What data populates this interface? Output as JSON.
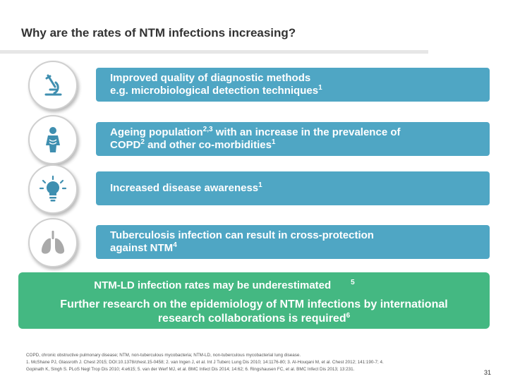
{
  "slide": {
    "title": "Why are the rates of NTM infections increasing?",
    "page_number": "31"
  },
  "reasons": [
    {
      "icon": "microscope-icon",
      "text": "Improved quality of diagnostic methods",
      "line2": "e.g. microbiological detection techniques",
      "ref2": "1"
    },
    {
      "icon": "elderly-person-icon",
      "text_a": "Ageing population",
      "ref_a": "2,3",
      "text_b": " with an increase in the prevalence of",
      "line2": "COPD",
      "ref_c": "2",
      "line2_b": " and other co-morbidities",
      "ref_d": "1"
    },
    {
      "icon": "lightbulb-icon",
      "text": "Increased disease awareness",
      "ref": "1"
    },
    {
      "icon": "lungs-icon",
      "text": "Tuberculosis infection can result in cross-protection",
      "line2": "against NTM",
      "ref2": "4"
    }
  ],
  "conclusion": {
    "line1": "NTM-LD infection rates may be underestimated",
    "ref1": "5",
    "line2a": "Further research on the epidemiology of NTM infections by international",
    "line2b": "research collaborations is required",
    "ref2": "6"
  },
  "footnotes": {
    "abbreviations": "COPD, chronic obstructive pulmonary disease; NTM, non-tuberculous mycobacteria; NTM-LD, non-tuberculous mycobacterial lung disease.",
    "refs_line1": "1. McShane PJ, Glassroth J. Chest 2015; DOI:10.1378/chest.15-0458; 2. van Ingen J, et al. Int J Tuberc Lung Dis 2010; 14:1176-80; 3. Al-Houqani M, et al. Chest 2012; 141:190-7; 4.",
    "refs_line2": "Gopinath K, Singh S. PLoS Negl Trop Dis 2010; 4:e615; 5. van der Werf MJ, et al. BMC Infect Dis 2014; 14:62; 6. Ringshausen FC, et al. BMC Infect Dis 2013; 13:231."
  },
  "colors": {
    "bar": "#4fa6c4",
    "conclusion": "#44b882",
    "icon": "#3f8fb0",
    "title_rule": "#e6e6e6"
  }
}
